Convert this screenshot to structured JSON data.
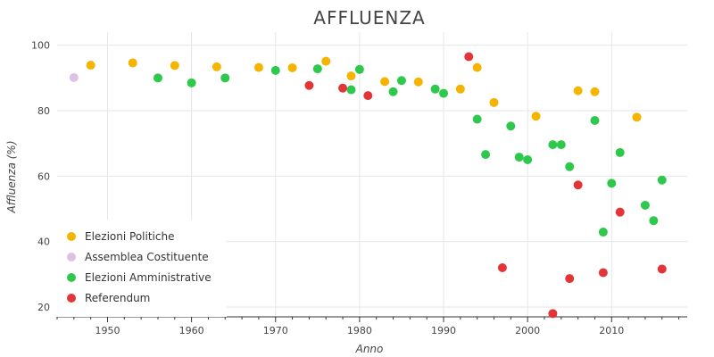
{
  "chart_data": {
    "type": "scatter",
    "title": "AFFLUENZA",
    "xlabel": "Anno",
    "ylabel": "Affluenza (%)",
    "xlim": [
      1944,
      2019
    ],
    "ylim": [
      17,
      104
    ],
    "x_ticks": [
      1950,
      1960,
      1970,
      1980,
      1990,
      2000,
      2010
    ],
    "y_ticks": [
      20,
      40,
      60,
      80,
      100
    ],
    "grid": true,
    "legend_position": "bottom-left",
    "series": [
      {
        "name": "Elezioni Politiche",
        "color": "#f5b400",
        "points": [
          [
            1948,
            93.9
          ],
          [
            1953,
            94.6
          ],
          [
            1958,
            93.8
          ],
          [
            1963,
            93.4
          ],
          [
            1968,
            93.2
          ],
          [
            1972,
            93.1
          ],
          [
            1976,
            95.1
          ],
          [
            1979,
            90.6
          ],
          [
            1983,
            88.9
          ],
          [
            1987,
            88.8
          ],
          [
            1992,
            86.6
          ],
          [
            1994,
            93.2
          ],
          [
            1996,
            82.5
          ],
          [
            2001,
            78.3
          ],
          [
            2006,
            86.1
          ],
          [
            2008,
            85.8
          ],
          [
            2013,
            78.0
          ]
        ]
      },
      {
        "name": "Assemblea Costituente",
        "color": "#dcc3e6",
        "points": [
          [
            1946,
            90.1
          ]
        ]
      },
      {
        "name": "Elezioni Amministrative",
        "color": "#2ec94c",
        "points": [
          [
            1956,
            90.0
          ],
          [
            1960,
            88.5
          ],
          [
            1964,
            90.0
          ],
          [
            1970,
            92.3
          ],
          [
            1975,
            92.8
          ],
          [
            1979,
            86.4
          ],
          [
            1980,
            92.6
          ],
          [
            1984,
            85.8
          ],
          [
            1985,
            89.2
          ],
          [
            1989,
            86.6
          ],
          [
            1990,
            85.3
          ],
          [
            1994,
            77.4
          ],
          [
            1995,
            66.6
          ],
          [
            1998,
            75.3
          ],
          [
            1999,
            65.8
          ],
          [
            2000,
            65.0
          ],
          [
            2003,
            69.6
          ],
          [
            2004,
            69.6
          ],
          [
            2005,
            62.9
          ],
          [
            2008,
            77.0
          ],
          [
            2009,
            42.9
          ],
          [
            2010,
            57.8
          ],
          [
            2011,
            67.2
          ],
          [
            2014,
            51.1
          ],
          [
            2015,
            46.4
          ],
          [
            2016,
            58.8
          ]
        ]
      },
      {
        "name": "Referendum",
        "color": "#e33537",
        "points": [
          [
            1974,
            87.7
          ],
          [
            1978,
            86.9
          ],
          [
            1981,
            84.6
          ],
          [
            1993,
            96.5
          ],
          [
            1997,
            32.0
          ],
          [
            2003,
            18.0
          ],
          [
            2005,
            28.7
          ],
          [
            2006,
            57.3
          ],
          [
            2009,
            30.5
          ],
          [
            2011,
            49.0
          ],
          [
            2016,
            31.6
          ]
        ]
      }
    ]
  }
}
